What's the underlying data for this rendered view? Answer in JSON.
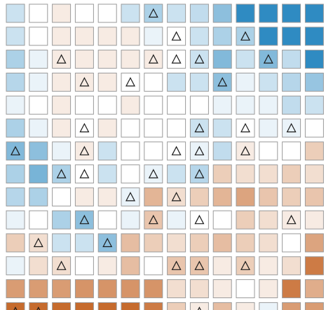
{
  "chart_data": {
    "type": "heatmap",
    "rows": 14,
    "cols": 14,
    "value_range": [
      -1,
      1
    ],
    "colors": {
      "negative_extreme": "#2f8bc2",
      "neutral": "#ffffff",
      "positive_extreme": "#c05a16",
      "cell_border": "#9a9a9a",
      "marker": "#1a1a1a"
    },
    "marker_shape": "triangle",
    "values": [
      [
        -0.25,
        0,
        0.12,
        0,
        0,
        -0.25,
        -0.4,
        -0.25,
        -0.3,
        -0.55,
        -1,
        -1,
        -1,
        -1
      ],
      [
        -0.25,
        0,
        0.12,
        0.12,
        0.12,
        0.12,
        -0.1,
        0,
        -0.25,
        -0.4,
        -0.4,
        -1,
        -1,
        -1
      ],
      [
        -0.4,
        -0.1,
        0.12,
        0.12,
        0.12,
        0.12,
        0.12,
        0,
        -0.25,
        -0.6,
        -0.25,
        -0.6,
        -0.3,
        -1
      ],
      [
        -0.35,
        -0.1,
        0.12,
        0.12,
        0.12,
        0,
        0,
        -0.25,
        -0.25,
        -0.55,
        -0.1,
        -0.25,
        -0.35,
        -0.5
      ],
      [
        -0.1,
        0,
        0.12,
        0,
        0,
        0.12,
        0,
        0,
        0,
        -0.1,
        -0.1,
        -0.1,
        -0.3,
        -0.25
      ],
      [
        -0.4,
        -0.1,
        0.12,
        0,
        0.12,
        0,
        0,
        0,
        -0.25,
        -0.25,
        0,
        -0.1,
        -0.1,
        0
      ],
      [
        -0.6,
        -0.55,
        -0.1,
        0.12,
        -0.25,
        0,
        0,
        0,
        -0.1,
        -0.3,
        0.12,
        0,
        0,
        0.3
      ],
      [
        -0.4,
        -0.65,
        -0.4,
        0,
        -0.25,
        0,
        -0.1,
        -0.25,
        -0.35,
        0.3,
        0.2,
        0.2,
        0.3,
        0.2
      ],
      [
        -0.35,
        -0.4,
        0,
        0.12,
        0.12,
        -0.1,
        0.45,
        0.2,
        0.3,
        0.45,
        0.55,
        0.35,
        0.3,
        0.35
      ],
      [
        -0.1,
        0,
        -0.4,
        -0.55,
        0,
        -0.1,
        0.35,
        -0.1,
        0,
        0,
        0.3,
        0.2,
        0.12,
        0.12
      ],
      [
        0.3,
        0.2,
        -0.25,
        -0.25,
        -0.55,
        0.4,
        0.3,
        0.2,
        0.3,
        0.4,
        0.3,
        0.2,
        0,
        0.55
      ],
      [
        -0.1,
        0.2,
        0.2,
        0,
        0.12,
        0.4,
        0,
        0.35,
        0.35,
        0.12,
        0.3,
        0.12,
        0.2,
        0.8
      ],
      [
        0.6,
        0.6,
        0.6,
        0.65,
        0.65,
        0.65,
        0.65,
        0.2,
        0.2,
        0.12,
        0,
        0.12,
        0.8,
        0.5
      ],
      [
        0.9,
        0.9,
        0.9,
        0.9,
        0.9,
        0.9,
        0.8,
        0.3,
        0.12,
        0.4,
        0.12,
        -0.1,
        0.6,
        0.6
      ]
    ],
    "markers": [
      [
        0,
        6
      ],
      [
        1,
        7
      ],
      [
        1,
        10
      ],
      [
        2,
        2
      ],
      [
        2,
        6
      ],
      [
        2,
        7
      ],
      [
        2,
        8
      ],
      [
        2,
        11
      ],
      [
        3,
        3
      ],
      [
        3,
        5
      ],
      [
        3,
        9
      ],
      [
        5,
        3
      ],
      [
        5,
        8
      ],
      [
        5,
        10
      ],
      [
        5,
        12
      ],
      [
        6,
        0
      ],
      [
        6,
        3
      ],
      [
        6,
        7
      ],
      [
        6,
        8
      ],
      [
        6,
        10
      ],
      [
        7,
        2
      ],
      [
        7,
        3
      ],
      [
        7,
        6
      ],
      [
        7,
        8
      ],
      [
        8,
        5
      ],
      [
        8,
        7
      ],
      [
        9,
        3
      ],
      [
        9,
        6
      ],
      [
        9,
        8
      ],
      [
        9,
        12
      ],
      [
        10,
        1
      ],
      [
        10,
        4
      ],
      [
        11,
        2
      ],
      [
        11,
        7
      ],
      [
        11,
        8
      ],
      [
        11,
        10
      ],
      [
        13,
        0
      ],
      [
        13,
        1
      ],
      [
        13,
        8
      ]
    ]
  }
}
